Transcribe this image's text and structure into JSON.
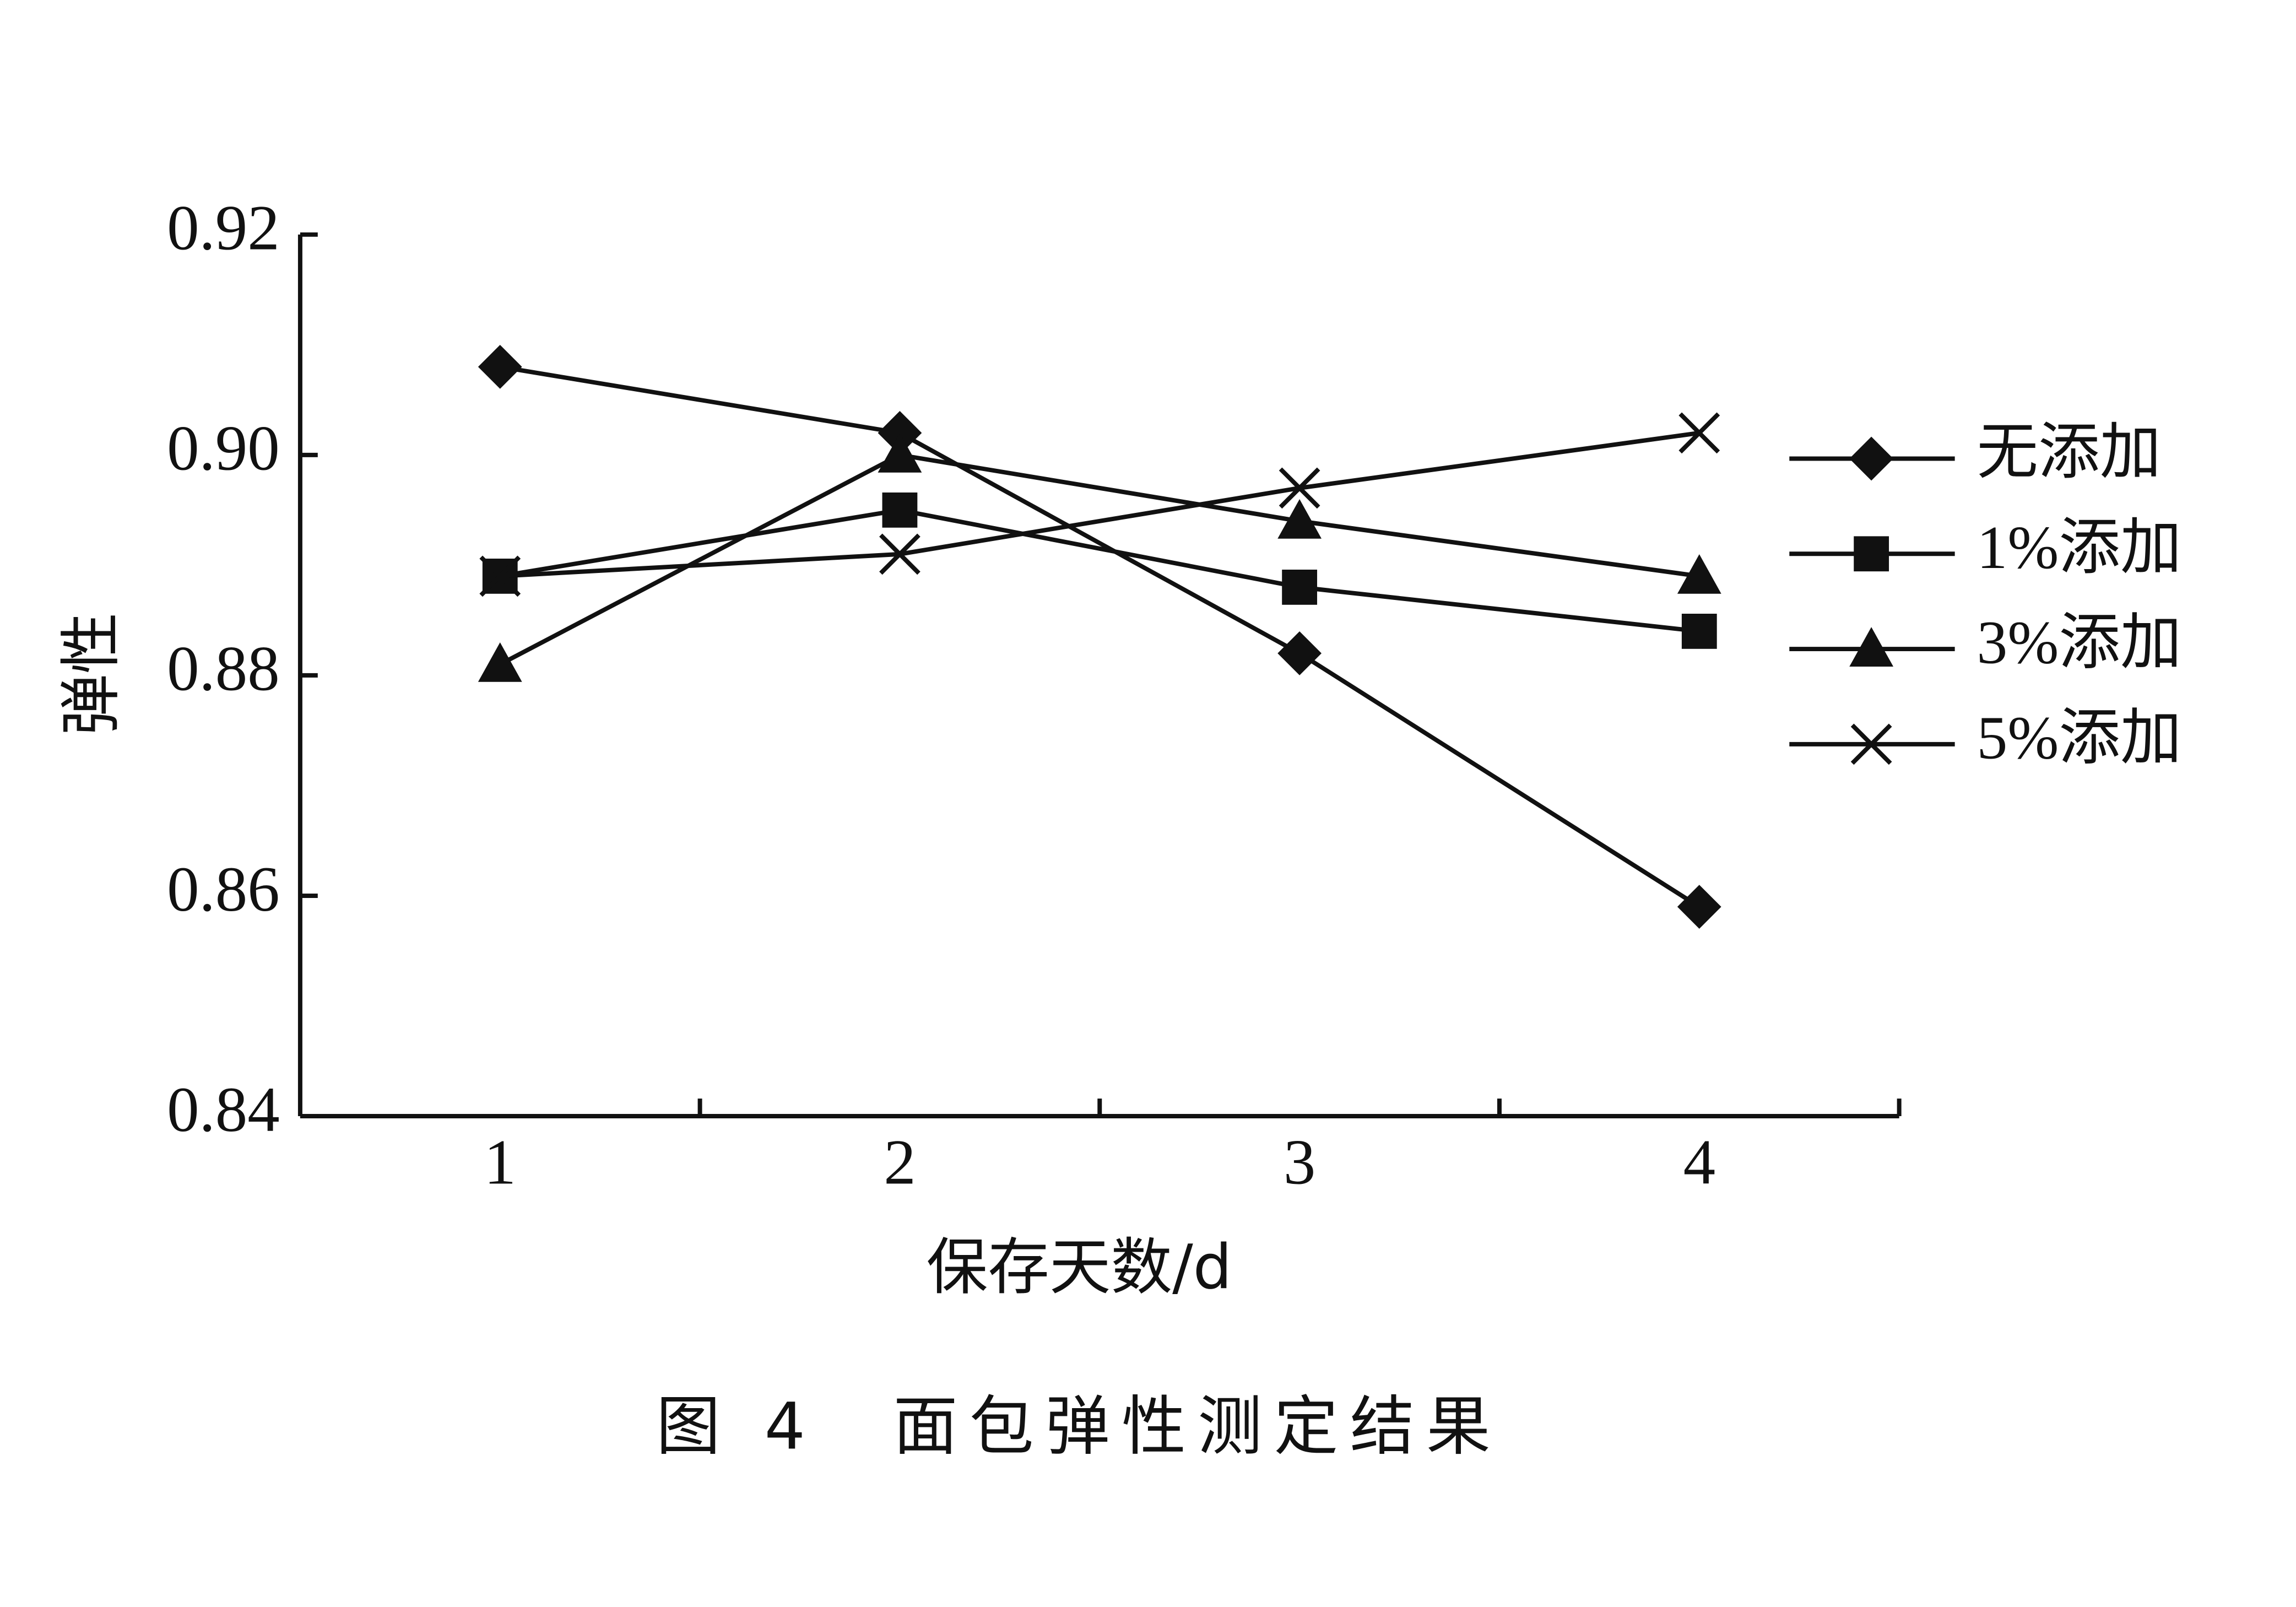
{
  "chart_data": {
    "type": "line",
    "caption": "图 4　面包弹性测定结果",
    "x_label": "保存天数/d",
    "y_label": "弹性",
    "categories": [
      "1",
      "2",
      "3",
      "4"
    ],
    "series": [
      {
        "name": "无添加",
        "color": "#111111",
        "marker": "diamond",
        "values": [
          0.908,
          0.902,
          0.882,
          0.859
        ]
      },
      {
        "name": "1%添加",
        "color": "#111111",
        "marker": "square",
        "values": [
          0.889,
          0.895,
          0.888,
          0.884
        ]
      },
      {
        "name": "3%添加",
        "color": "#111111",
        "marker": "triangle",
        "values": [
          0.881,
          0.9,
          0.894,
          0.889
        ]
      },
      {
        "name": "5%添加",
        "color": "#111111",
        "marker": "x",
        "values": [
          0.889,
          0.891,
          0.897,
          0.902
        ]
      }
    ],
    "ylim": [
      0.84,
      0.92
    ],
    "yticks": [
      0.84,
      0.86,
      0.88,
      {
        "value": 0.9,
        "label": "0.90"
      },
      0.92
    ],
    "legend": "right",
    "grid": false
  }
}
